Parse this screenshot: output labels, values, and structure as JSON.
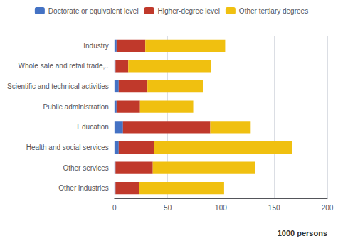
{
  "chart_data": {
    "type": "bar",
    "orientation": "horizontal",
    "stacked": true,
    "categories": [
      "Industry",
      "Whole sale and retail trade,..",
      "Scientific and technical activities",
      "Public administration",
      "Education",
      "Health and social services",
      "Other services",
      "Other industries"
    ],
    "series": [
      {
        "name": "Doctorate or equivalent level",
        "color": "#4472C4",
        "values": [
          2,
          1,
          4,
          2,
          8,
          4,
          1,
          1
        ]
      },
      {
        "name": "Higher-degree level",
        "color": "#C0392B",
        "values": [
          27,
          12,
          27,
          22,
          82,
          33,
          35,
          22
        ]
      },
      {
        "name": "Other tertiary degrees",
        "color": "#F0C010",
        "values": [
          75,
          78,
          52,
          50,
          38,
          130,
          96,
          80
        ]
      }
    ],
    "xlim": [
      0,
      200
    ],
    "xticks": [
      0,
      50,
      100,
      150,
      200
    ],
    "grid": true,
    "legend": "top",
    "annotation": "1000 persons"
  }
}
